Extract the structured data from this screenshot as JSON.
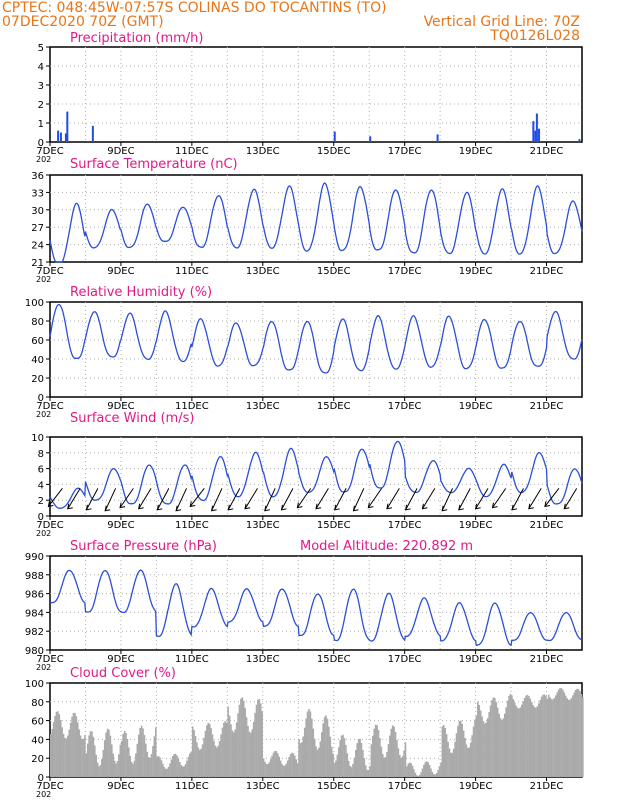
{
  "header": {
    "line1": "CPTEC:   048:45W-07:57S   COLINAS DO TOCANTINS (TO)",
    "line2_left": "07DEC2020 70Z (GMT)",
    "line2_right": "Vertical Grid Line: 70Z",
    "line3_right": "TQ0126L028"
  },
  "colors": {
    "header_text": "#e8751a",
    "panel_title_text": "#e0198a",
    "series_line": "#2b4fd8",
    "precip_bars": "#1f4de6",
    "cloud_bars": "#aaaaaa",
    "grid": "#b0b0b0",
    "wind_arrows": "#000000"
  },
  "x_axis": {
    "tick_labels": [
      "7DEC",
      "9DEC",
      "11DEC",
      "13DEC",
      "15DEC",
      "17DEC",
      "19DEC",
      "21DEC"
    ],
    "cut_label": "202",
    "range_days": [
      0,
      15
    ]
  },
  "chart_data": [
    {
      "type": "bar",
      "title": "Precipitation (mm/h)",
      "ylim": [
        0,
        5
      ],
      "yticks": [
        0,
        1,
        2,
        3,
        4,
        5
      ],
      "x_unit": "days since 07DEC2020 00Z",
      "bars": [
        [
          0.2,
          0.6
        ],
        [
          0.28,
          0.5
        ],
        [
          0.42,
          0.45
        ],
        [
          0.46,
          1.6
        ],
        [
          1.18,
          0.85
        ],
        [
          8.0,
          0.55
        ],
        [
          9.0,
          0.3
        ],
        [
          10.9,
          0.4
        ],
        [
          13.6,
          1.1
        ],
        [
          13.66,
          0.6
        ],
        [
          13.7,
          1.5
        ],
        [
          13.76,
          0.7
        ],
        [
          14.9,
          0.15
        ]
      ]
    },
    {
      "type": "line",
      "title": "Surface Temperature (nC)",
      "ylim": [
        21,
        36
      ],
      "yticks": [
        21,
        24,
        27,
        30,
        33,
        36
      ],
      "daily_min": [
        23.0,
        23.5,
        23.5,
        24.5,
        23.5,
        23.5,
        23.5,
        23.0,
        23.0,
        23.0,
        22.5,
        22.5,
        22.5,
        22.5,
        22.5,
        22.0
      ],
      "daily_max": [
        31.0,
        30.0,
        31.0,
        30.5,
        32.5,
        33.5,
        34.0,
        34.5,
        34.0,
        33.5,
        33.5,
        33.0,
        33.5,
        34.0,
        31.5,
        33.0
      ],
      "first_night_min": 20.5
    },
    {
      "type": "line",
      "title": "Relative Humidity (%)",
      "ylim": [
        0,
        100
      ],
      "yticks": [
        0,
        20,
        40,
        60,
        80,
        100
      ],
      "daily_min": [
        40,
        42,
        40,
        38,
        33,
        33,
        28,
        25,
        28,
        30,
        32,
        30,
        30,
        32,
        40,
        30
      ],
      "daily_max": [
        98,
        90,
        88,
        90,
        82,
        78,
        80,
        80,
        82,
        85,
        85,
        85,
        82,
        80,
        90,
        88
      ]
    },
    {
      "type": "line",
      "title": "Surface Wind (m/s)",
      "ylim": [
        0,
        10
      ],
      "yticks": [
        0,
        2,
        4,
        6,
        8,
        10
      ],
      "daily_min": [
        1.0,
        2.0,
        1.5,
        1.5,
        2.0,
        2.5,
        2.5,
        3.0,
        3.0,
        3.5,
        3.0,
        3.0,
        2.5,
        3.0,
        1.5,
        1.5
      ],
      "daily_max": [
        3.5,
        6.0,
        6.5,
        6.5,
        7.5,
        8.0,
        8.5,
        7.5,
        8.5,
        9.5,
        7.0,
        6.0,
        6.5,
        8.0,
        6.0,
        6.5
      ],
      "arrows_from_direction_deg": [
        60,
        50,
        45,
        40,
        55,
        50,
        45,
        40,
        60,
        40,
        45,
        50,
        40,
        45,
        55,
        50,
        45,
        40,
        55,
        50,
        45,
        50,
        40,
        45,
        50,
        55,
        45,
        50,
        60,
        50
      ]
    },
    {
      "type": "line",
      "title": "Surface Pressure (hPa)",
      "annotation": "Model Altitude: 220.892 m",
      "ylim": [
        980,
        990
      ],
      "yticks": [
        980,
        982,
        984,
        986,
        988,
        990
      ],
      "daily_min": [
        985.0,
        984.0,
        984.0,
        981.5,
        982.5,
        983.0,
        982.5,
        981.5,
        981.0,
        981.0,
        981.5,
        981.0,
        980.5,
        981.0,
        981.0,
        980.0
      ],
      "daily_max": [
        988.5,
        988.5,
        988.5,
        987.0,
        986.5,
        986.5,
        986.5,
        986.0,
        986.5,
        986.0,
        985.5,
        985.0,
        985.0,
        984.0,
        984.0,
        983.0
      ]
    },
    {
      "type": "bar",
      "title": "Cloud Cover (%)",
      "ylim": [
        0,
        100
      ],
      "yticks": [
        0,
        20,
        40,
        60,
        80,
        100
      ],
      "daily_max": [
        97,
        88,
        80,
        30,
        60,
        85,
        30,
        90,
        70,
        90,
        30,
        80,
        92,
        88,
        95,
        97
      ],
      "daily_min": [
        40,
        10,
        5,
        0,
        5,
        10,
        0,
        10,
        5,
        20,
        0,
        15,
        40,
        60,
        70,
        70
      ]
    }
  ]
}
